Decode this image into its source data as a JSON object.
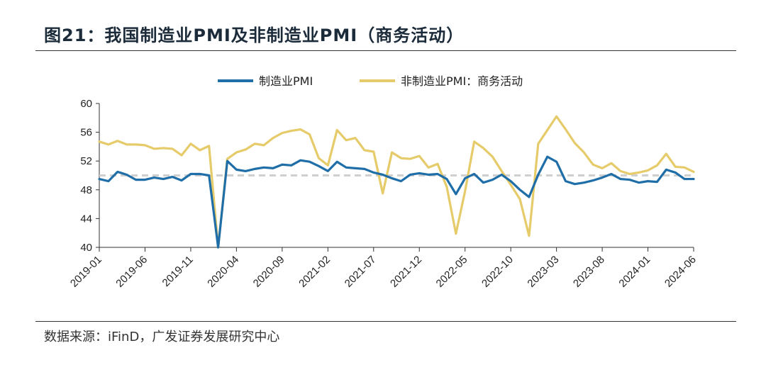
{
  "figure": {
    "title": "图21：我国制造业PMI及非制造业PMI（商务活动）",
    "source": "数据来源：iFinD，广发证券发展研究中心"
  },
  "colors": {
    "manufacturing": "#1f6ea8",
    "non_manufacturing": "#e6cb6a",
    "reference": "#cfcfcf",
    "axis": "#333333"
  },
  "chart_data": {
    "type": "line",
    "ylim": [
      40,
      60
    ],
    "yticks": [
      40,
      44,
      48,
      52,
      56,
      60
    ],
    "reference_line": 50,
    "xlim_index": [
      0,
      66
    ],
    "xticks": [
      "2019-01",
      "2019-06",
      "2019-11",
      "2020-04",
      "2020-09",
      "2021-02",
      "2021-07",
      "2021-12",
      "2022-05",
      "2022-10",
      "2023-03",
      "2023-08",
      "2024-01",
      "2024-06"
    ],
    "legend_position": "top-center",
    "grid": false,
    "x": [
      "2019-01",
      "2019-02",
      "2019-03",
      "2019-04",
      "2019-05",
      "2019-06",
      "2019-07",
      "2019-08",
      "2019-09",
      "2019-10",
      "2019-11",
      "2019-12",
      "2020-01",
      "2020-02",
      "2020-03",
      "2020-04",
      "2020-05",
      "2020-06",
      "2020-07",
      "2020-08",
      "2020-09",
      "2020-10",
      "2020-11",
      "2020-12",
      "2021-01",
      "2021-02",
      "2021-03",
      "2021-04",
      "2021-05",
      "2021-06",
      "2021-07",
      "2021-08",
      "2021-09",
      "2021-10",
      "2021-11",
      "2021-12",
      "2022-01",
      "2022-02",
      "2022-03",
      "2022-04",
      "2022-05",
      "2022-06",
      "2022-07",
      "2022-08",
      "2022-09",
      "2022-10",
      "2022-11",
      "2022-12",
      "2023-01",
      "2023-02",
      "2023-03",
      "2023-04",
      "2023-05",
      "2023-06",
      "2023-07",
      "2023-08",
      "2023-09",
      "2023-10",
      "2023-11",
      "2023-12",
      "2024-01",
      "2024-02",
      "2024-03",
      "2024-04",
      "2024-05",
      "2024-06"
    ],
    "series": [
      {
        "name": "制造业PMI",
        "color_key": "manufacturing",
        "values": [
          49.5,
          49.2,
          50.5,
          50.1,
          49.4,
          49.4,
          49.7,
          49.5,
          49.8,
          49.3,
          50.2,
          50.2,
          50.0,
          35.7,
          52.0,
          50.8,
          50.6,
          50.9,
          51.1,
          51.0,
          51.5,
          51.4,
          52.1,
          51.9,
          51.3,
          50.6,
          51.9,
          51.1,
          51.0,
          50.9,
          50.4,
          50.1,
          49.6,
          49.2,
          50.1,
          50.3,
          50.1,
          50.2,
          49.5,
          47.4,
          49.6,
          50.2,
          49.0,
          49.4,
          50.1,
          49.2,
          48.0,
          47.0,
          50.1,
          52.6,
          51.9,
          49.2,
          48.8,
          49.0,
          49.3,
          49.7,
          50.2,
          49.5,
          49.4,
          49.0,
          49.2,
          49.1,
          50.8,
          50.4,
          49.5,
          49.5
        ]
      },
      {
        "name": "非制造业PMI：商务活动",
        "color_key": "non_manufacturing",
        "values": [
          54.7,
          54.3,
          54.8,
          54.3,
          54.3,
          54.2,
          53.7,
          53.8,
          53.7,
          52.8,
          54.4,
          53.5,
          54.1,
          29.6,
          52.3,
          53.2,
          53.6,
          54.4,
          54.2,
          55.2,
          55.9,
          56.2,
          56.4,
          55.7,
          52.4,
          51.4,
          56.3,
          54.9,
          55.2,
          53.5,
          53.3,
          47.5,
          53.2,
          52.4,
          52.3,
          52.7,
          51.1,
          51.6,
          48.4,
          41.9,
          47.8,
          54.7,
          53.8,
          52.6,
          50.6,
          48.7,
          46.7,
          41.6,
          54.4,
          56.3,
          58.2,
          56.4,
          54.5,
          53.2,
          51.5,
          51.0,
          51.7,
          50.6,
          50.2,
          50.4,
          50.7,
          51.4,
          53.0,
          51.2,
          51.1,
          50.5
        ]
      }
    ]
  }
}
